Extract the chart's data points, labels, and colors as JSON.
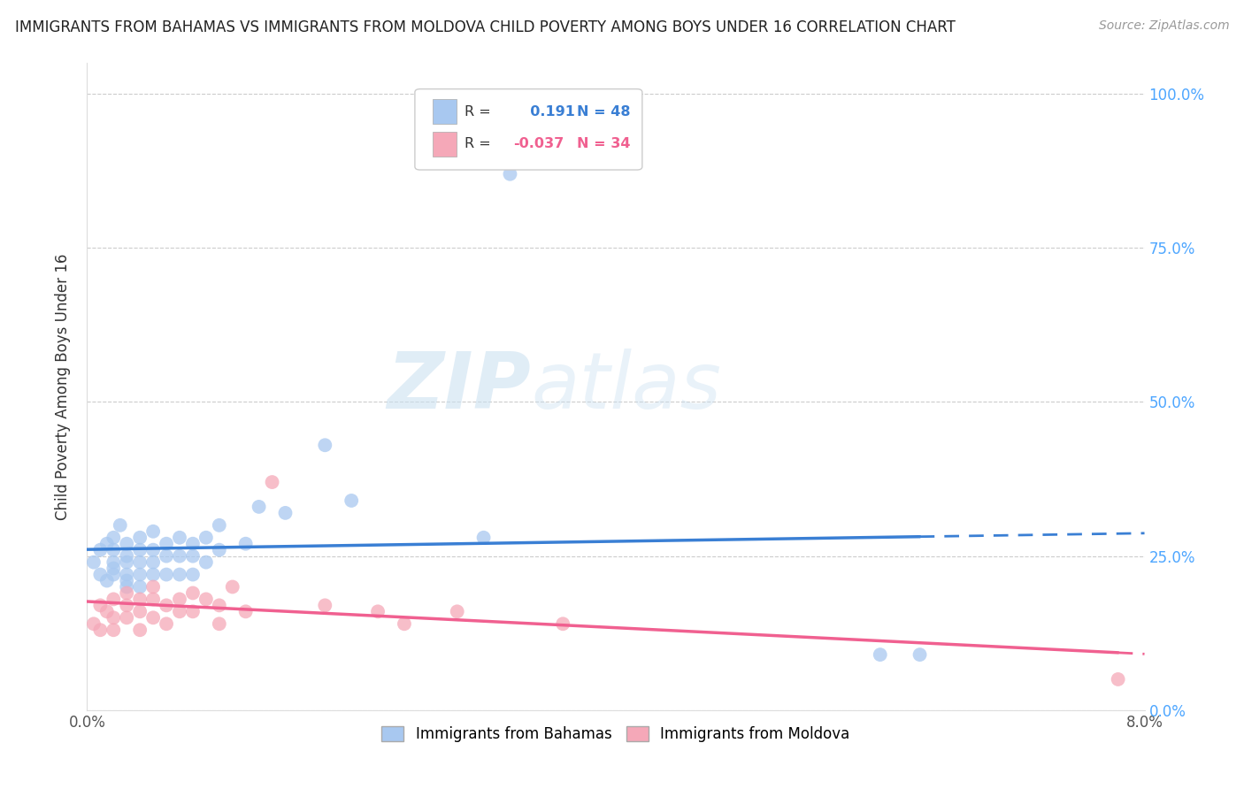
{
  "title": "IMMIGRANTS FROM BAHAMAS VS IMMIGRANTS FROM MOLDOVA CHILD POVERTY AMONG BOYS UNDER 16 CORRELATION CHART",
  "source": "Source: ZipAtlas.com",
  "ylabel": "Child Poverty Among Boys Under 16",
  "yticks": [
    "0.0%",
    "25.0%",
    "50.0%",
    "75.0%",
    "100.0%"
  ],
  "ytick_vals": [
    0.0,
    0.25,
    0.5,
    0.75,
    1.0
  ],
  "xlim": [
    0.0,
    0.08
  ],
  "ylim": [
    0.0,
    1.05
  ],
  "legend_label1": "Immigrants from Bahamas",
  "legend_label2": "Immigrants from Moldova",
  "R1": 0.191,
  "N1": 48,
  "R2": -0.037,
  "N2": 34,
  "color_bahamas": "#a8c8f0",
  "color_moldova": "#f5a8b8",
  "line_color_bahamas": "#3a7fd4",
  "line_color_moldova": "#f06090",
  "watermark_zip": "ZIP",
  "watermark_atlas": "atlas",
  "bahamas_x": [
    0.0005,
    0.001,
    0.001,
    0.0015,
    0.0015,
    0.002,
    0.002,
    0.002,
    0.002,
    0.002,
    0.0025,
    0.003,
    0.003,
    0.003,
    0.003,
    0.003,
    0.003,
    0.004,
    0.004,
    0.004,
    0.004,
    0.004,
    0.005,
    0.005,
    0.005,
    0.005,
    0.006,
    0.006,
    0.006,
    0.007,
    0.007,
    0.007,
    0.008,
    0.008,
    0.008,
    0.009,
    0.009,
    0.01,
    0.01,
    0.012,
    0.013,
    0.015,
    0.018,
    0.02,
    0.03,
    0.032,
    0.06,
    0.063
  ],
  "bahamas_y": [
    0.24,
    0.26,
    0.22,
    0.27,
    0.21,
    0.28,
    0.26,
    0.24,
    0.23,
    0.22,
    0.3,
    0.27,
    0.25,
    0.24,
    0.22,
    0.21,
    0.2,
    0.28,
    0.26,
    0.24,
    0.22,
    0.2,
    0.29,
    0.26,
    0.24,
    0.22,
    0.27,
    0.25,
    0.22,
    0.28,
    0.25,
    0.22,
    0.27,
    0.25,
    0.22,
    0.28,
    0.24,
    0.3,
    0.26,
    0.27,
    0.33,
    0.32,
    0.43,
    0.34,
    0.28,
    0.87,
    0.09,
    0.09
  ],
  "moldova_x": [
    0.0005,
    0.001,
    0.001,
    0.0015,
    0.002,
    0.002,
    0.002,
    0.003,
    0.003,
    0.003,
    0.004,
    0.004,
    0.004,
    0.005,
    0.005,
    0.005,
    0.006,
    0.006,
    0.007,
    0.007,
    0.008,
    0.008,
    0.009,
    0.01,
    0.01,
    0.011,
    0.012,
    0.014,
    0.018,
    0.022,
    0.024,
    0.028,
    0.036,
    0.078
  ],
  "moldova_y": [
    0.14,
    0.17,
    0.13,
    0.16,
    0.18,
    0.15,
    0.13,
    0.19,
    0.17,
    0.15,
    0.18,
    0.16,
    0.13,
    0.2,
    0.18,
    0.15,
    0.17,
    0.14,
    0.18,
    0.16,
    0.19,
    0.16,
    0.18,
    0.17,
    0.14,
    0.2,
    0.16,
    0.37,
    0.17,
    0.16,
    0.14,
    0.16,
    0.14,
    0.05
  ]
}
